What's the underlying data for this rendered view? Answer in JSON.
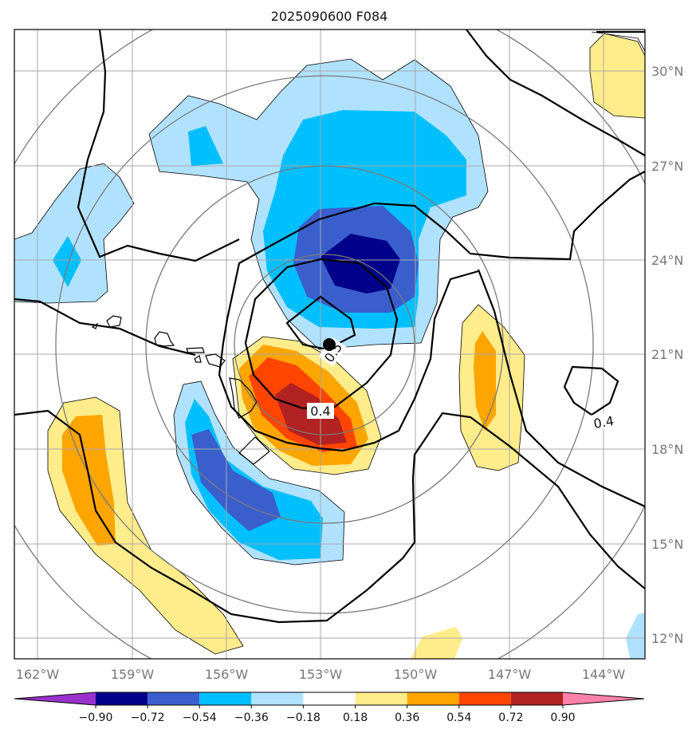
{
  "title": "2025090600 F084",
  "lat_labels": [
    "30°N",
    "27°N",
    "24°N",
    "21°N",
    "18°N",
    "15°N",
    "12°N"
  ],
  "lon_labels": [
    "162°W",
    "159°W",
    "156°W",
    "153°W",
    "150°W",
    "147°W",
    "144°W"
  ],
  "contour_labels": [
    "0.5",
    "0.4",
    "0.4"
  ],
  "colorbar": {
    "ticks": [
      "−0.90",
      "−0.72",
      "−0.54",
      "−0.36",
      "−0.18",
      "0.18",
      "0.36",
      "0.54",
      "0.72",
      "0.90"
    ],
    "colors": [
      "#9932cc",
      "#00008b",
      "#3a5fcd",
      "#00bfff",
      "#b0e2ff",
      "#ffffff",
      "#ffec8b",
      "#ffa500",
      "#ff4500",
      "#b22222",
      "#ff82ab"
    ]
  },
  "fill_colors": {
    "neg_light": "#b0e2ff",
    "neg_mid": "#00bfff",
    "neg_strong": "#3a5fcd",
    "neg_max": "#00008b",
    "pos_light": "#ffec8b",
    "pos_mid": "#ffa500",
    "pos_strong": "#ff4500",
    "pos_max": "#b22222"
  },
  "storm_marker": "storm-center-dot"
}
